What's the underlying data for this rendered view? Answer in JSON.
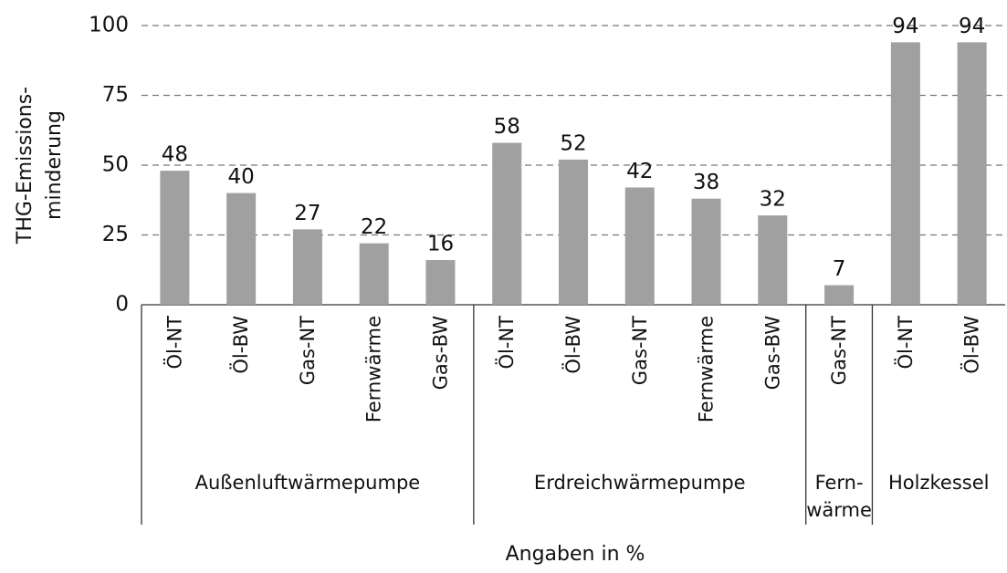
{
  "chart_data": {
    "type": "bar",
    "ylabel": [
      "THG-Emissions-",
      "minderung"
    ],
    "xlabel": "Angaben in %",
    "color": "#a0a0a0",
    "ylim": [
      0,
      100
    ],
    "yticks": [
      0,
      25,
      50,
      75,
      100
    ],
    "grid": true,
    "groups": [
      {
        "name": [
          "Außenluftwärmepumpe"
        ],
        "categories": [
          "Öl-NT",
          "Öl-BW",
          "Gas-NT",
          "Fernwärme",
          "Gas-BW"
        ],
        "values": [
          48,
          40,
          27,
          22,
          16
        ]
      },
      {
        "name": [
          "Erdreichwärmepumpe"
        ],
        "categories": [
          "Öl-NT",
          "Öl-BW",
          "Gas-NT",
          "Fernwärme",
          "Gas-BW"
        ],
        "values": [
          58,
          52,
          42,
          38,
          32
        ]
      },
      {
        "name": [
          "Fern-",
          "wärme"
        ],
        "categories": [
          "Gas-NT"
        ],
        "values": [
          7
        ]
      },
      {
        "name": [
          "Holzkessel"
        ],
        "categories": [
          "Öl-NT",
          "Öl-BW"
        ],
        "values": [
          94,
          94
        ]
      }
    ]
  }
}
